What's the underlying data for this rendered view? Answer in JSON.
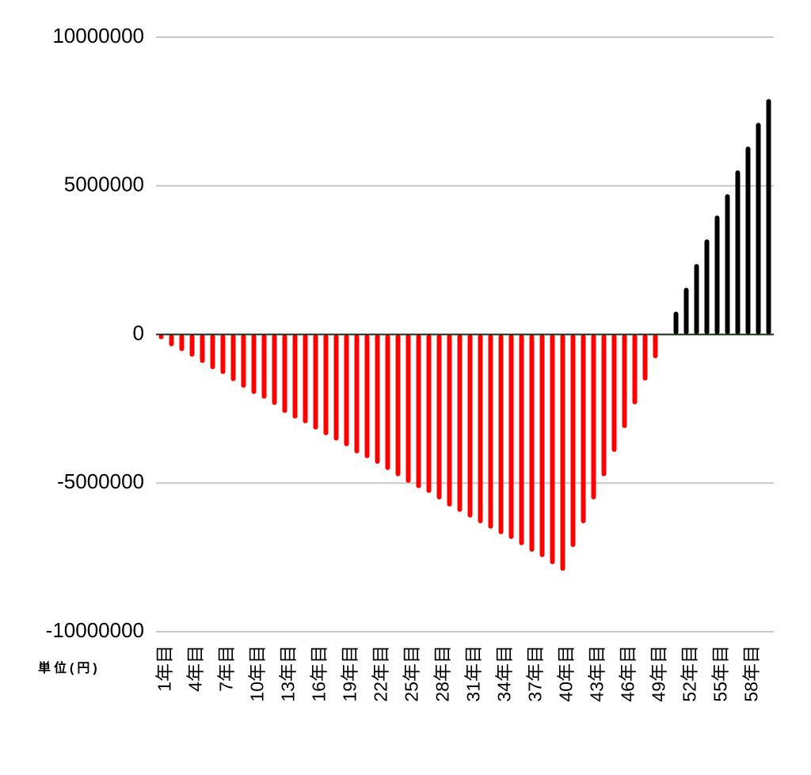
{
  "chart_data": {
    "type": "bar",
    "unit_label": "単位(円)",
    "categories": [
      "1年目",
      null,
      null,
      "4年目",
      null,
      null,
      "7年目",
      null,
      null,
      "10年目",
      null,
      null,
      "13年目",
      null,
      null,
      "16年目",
      null,
      null,
      "19年目",
      null,
      null,
      "22年目",
      null,
      null,
      "25年目",
      null,
      null,
      "28年目",
      null,
      null,
      "31年目",
      null,
      null,
      "34年目",
      null,
      null,
      "37年目",
      null,
      null,
      "40年目",
      null,
      null,
      "43年目",
      null,
      null,
      "46年目",
      null,
      null,
      "49年目",
      null,
      null,
      "52年目",
      null,
      null,
      "55年目",
      null,
      null,
      "58年目",
      null,
      null
    ],
    "values": [
      -160000,
      -400000,
      -560000,
      -750000,
      -960000,
      -1170000,
      -1330000,
      -1570000,
      -1790000,
      -2000000,
      -2160000,
      -2370000,
      -2640000,
      -2830000,
      -2990000,
      -3200000,
      -3390000,
      -3570000,
      -3760000,
      -4000000,
      -4160000,
      -4350000,
      -4560000,
      -4770000,
      -4990000,
      -5170000,
      -5330000,
      -5550000,
      -5790000,
      -5970000,
      -6160000,
      -6350000,
      -6530000,
      -6720000,
      -6880000,
      -7090000,
      -7310000,
      -7490000,
      -7730000,
      -7950000,
      -7150000,
      -6350000,
      -5550000,
      -4770000,
      -3950000,
      -3150000,
      -2350000,
      -1550000,
      -800000,
      0,
      770000,
      1570000,
      2370000,
      3200000,
      4000000,
      4720000,
      5520000,
      6320000,
      7120000,
      7920000
    ],
    "color": "#000000",
    "negative_color": "#ff0000",
    "ylim": [
      -10000000,
      10000000
    ],
    "yticks": [
      -10000000,
      -5000000,
      0,
      5000000,
      10000000
    ],
    "grid": true
  }
}
